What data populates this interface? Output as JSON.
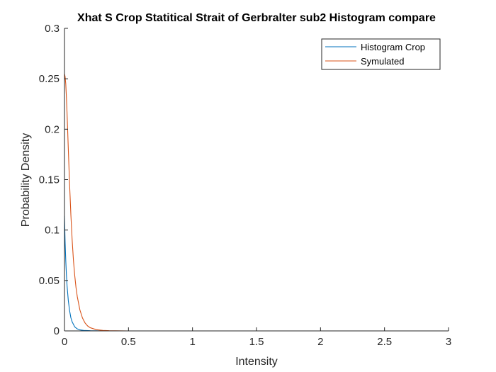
{
  "chart_data": {
    "type": "line",
    "title": "Xhat S Crop Statitical Strait of Gerbralter sub2  Histogram compare",
    "xlabel": "Intensity",
    "ylabel": "Probability Density",
    "xlim": [
      0,
      3
    ],
    "ylim": [
      0,
      0.3
    ],
    "xticks": [
      0,
      0.5,
      1,
      1.5,
      2,
      2.5,
      3
    ],
    "yticks": [
      0,
      0.05,
      0.1,
      0.15,
      0.2,
      0.25,
      0.3
    ],
    "xtick_labels": [
      "0",
      "0.5",
      "1",
      "1.5",
      "2",
      "2.5",
      "3"
    ],
    "ytick_labels": [
      "0",
      "0.05",
      "0.1",
      "0.15",
      "0.2",
      "0.25",
      "0.3"
    ],
    "grid": false,
    "legend_position": "top-right",
    "series": [
      {
        "name": "Histogram Crop",
        "color": "#0072BD",
        "x": [
          0,
          0.005,
          0.01,
          0.015,
          0.02,
          0.03,
          0.04,
          0.05,
          0.06,
          0.08,
          0.1,
          0.12,
          0.15,
          0.2,
          0.25,
          0.3,
          0.4
        ],
        "y": [
          0.114,
          0.088,
          0.07,
          0.056,
          0.045,
          0.03,
          0.02,
          0.013,
          0.009,
          0.004,
          0.002,
          0.001,
          0.0005,
          0.0002,
          0.0001,
          0,
          0
        ]
      },
      {
        "name": "Symulated",
        "color": "#D95319",
        "x": [
          0,
          0.005,
          0.01,
          0.015,
          0.02,
          0.025,
          0.03,
          0.04,
          0.05,
          0.06,
          0.07,
          0.08,
          0.09,
          0.1,
          0.12,
          0.14,
          0.16,
          0.18,
          0.2,
          0.25,
          0.3,
          0.35,
          0.4,
          0.5,
          0.7,
          1.0,
          1.5,
          2.0,
          2.5,
          2.85
        ],
        "y": [
          0.255,
          0.252,
          0.245,
          0.232,
          0.216,
          0.198,
          0.18,
          0.145,
          0.115,
          0.09,
          0.07,
          0.055,
          0.043,
          0.034,
          0.021,
          0.013,
          0.008,
          0.005,
          0.0032,
          0.0012,
          0.0005,
          0.0002,
          0.0001,
          0,
          0,
          0,
          0,
          0,
          0,
          0
        ]
      }
    ]
  }
}
